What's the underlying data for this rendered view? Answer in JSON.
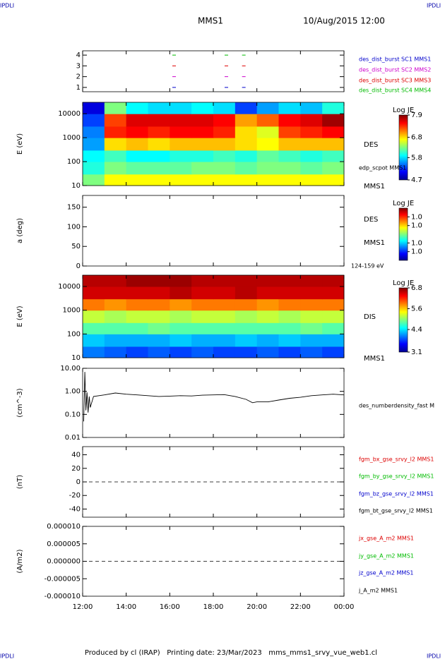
{
  "header": {
    "left": "MMS1",
    "right": "10/Aug/2015 12:00"
  },
  "corner": "IPDLI",
  "footer": "Produced by cl (IRAP)   Printing date: 23/Mar/2023   mms_mms1_srvy_vue_web1.cl",
  "time_axis": {
    "xlim": [
      12,
      24
    ],
    "xticks": [
      {
        "value": 12,
        "label": "12:00"
      },
      {
        "value": 14,
        "label": "14:00"
      },
      {
        "value": 16,
        "label": "16:00"
      },
      {
        "value": 18,
        "label": "18:00"
      },
      {
        "value": 20,
        "label": "20:00"
      },
      {
        "value": 22,
        "label": "22:00"
      },
      {
        "value": 24,
        "label": "00:00"
      }
    ]
  },
  "chart_data": [
    {
      "type": "event",
      "ylim": [
        0.6,
        4.4
      ],
      "yticks": [
        1,
        2,
        3,
        4
      ],
      "series": [
        {
          "name": "des_dist_burst SC1 MMS1",
          "color": "#0000cc",
          "x": [
            16.2,
            18.6,
            19.4
          ],
          "values": [
            1,
            1,
            1
          ]
        },
        {
          "name": "des_dist_burst SC2 MMS2",
          "color": "#cc00cc",
          "x": [
            16.2,
            18.6,
            19.4
          ],
          "values": [
            2,
            2,
            2
          ]
        },
        {
          "name": "des_dist_burst SC3 MMS3",
          "color": "#dd0000",
          "x": [
            16.2,
            18.6,
            19.4
          ],
          "values": [
            3,
            3,
            3
          ]
        },
        {
          "name": "des_dist_burst SC4 MMS4",
          "color": "#00bb00",
          "x": [
            16.2,
            18.6,
            19.4
          ],
          "values": [
            4,
            4,
            4
          ]
        }
      ]
    },
    {
      "type": "heatmap",
      "ylabel": "E (eV)",
      "log_y": true,
      "ylim": [
        10,
        30000
      ],
      "yticks": [
        10,
        100,
        1000,
        10000
      ],
      "xbins": [
        12,
        13,
        14,
        15,
        16,
        17,
        18,
        19,
        20,
        21,
        22,
        23,
        24
      ],
      "ybins": [
        10,
        30,
        100,
        300,
        1000,
        3000,
        10000,
        30000
      ],
      "z": [
        [
          6.3,
          6.7,
          6.7,
          6.7,
          6.7,
          6.7,
          6.7,
          6.7,
          6.7,
          6.7,
          6.7,
          6.7
        ],
        [
          6.0,
          6.3,
          6.2,
          6.2,
          6.2,
          6.3,
          6.3,
          6.2,
          6.3,
          6.3,
          6.2,
          6.3
        ],
        [
          5.9,
          6.1,
          5.9,
          5.9,
          6.0,
          6.0,
          6.1,
          6.0,
          6.2,
          6.1,
          6.0,
          6.1
        ],
        [
          5.6,
          6.8,
          6.9,
          6.8,
          6.9,
          6.9,
          6.9,
          6.8,
          6.7,
          6.9,
          6.9,
          6.9
        ],
        [
          5.5,
          7.4,
          7.5,
          7.4,
          7.5,
          7.5,
          7.4,
          6.8,
          6.6,
          7.3,
          7.4,
          7.5
        ],
        [
          5.3,
          7.3,
          7.6,
          7.6,
          7.6,
          7.6,
          7.5,
          7.0,
          7.2,
          7.5,
          7.6,
          7.8
        ],
        [
          5.0,
          6.3,
          5.9,
          5.8,
          5.8,
          5.9,
          5.8,
          5.3,
          5.6,
          5.8,
          5.7,
          6.0
        ]
      ],
      "colorbar": {
        "label": "Log JE",
        "clim": [
          4.7,
          7.9
        ],
        "ticks": [
          4.7,
          5.8,
          6.8,
          7.9
        ]
      },
      "labels": [
        "DES",
        "edp_scpot MMS1",
        "MMS1"
      ]
    },
    {
      "type": "heatmap",
      "ylabel": "a (deg)",
      "ylim": [
        0,
        180
      ],
      "yticks": [
        0,
        50,
        100,
        150
      ],
      "xbins": [],
      "ybins": [],
      "z": [],
      "colorbar": {
        "label": "Log JE",
        "clim": [
          0.97,
          1.03
        ],
        "ticks": [
          {
            "value": 0.98,
            "label": "1.0"
          },
          {
            "value": 0.99,
            "label": "1.0"
          },
          {
            "value": 1.01,
            "label": "1.0"
          },
          {
            "value": 1.02,
            "label": "1.0"
          }
        ]
      },
      "labels": [
        "DES",
        "MMS1",
        "124-159 eV"
      ]
    },
    {
      "type": "heatmap",
      "ylabel": "E (eV)",
      "log_y": true,
      "ylim": [
        10,
        30000
      ],
      "yticks": [
        10,
        100,
        1000,
        10000
      ],
      "xbins": [
        12,
        13,
        14,
        15,
        16,
        17,
        18,
        19,
        20,
        21,
        22,
        23,
        24
      ],
      "ybins": [
        10,
        30,
        100,
        300,
        1000,
        3000,
        10000,
        30000
      ],
      "z": [
        [
          4.0,
          3.9,
          3.8,
          3.9,
          3.8,
          3.9,
          3.8,
          3.8,
          3.9,
          3.8,
          3.9,
          3.8
        ],
        [
          4.3,
          4.2,
          4.2,
          4.2,
          4.3,
          4.2,
          4.2,
          4.3,
          4.2,
          4.3,
          4.2,
          4.2
        ],
        [
          4.8,
          4.8,
          4.8,
          4.9,
          4.8,
          4.8,
          4.8,
          4.8,
          4.8,
          4.8,
          4.9,
          4.8
        ],
        [
          5.2,
          5.1,
          5.2,
          5.2,
          5.1,
          5.2,
          5.2,
          5.1,
          5.2,
          5.1,
          5.2,
          5.2
        ],
        [
          5.9,
          5.8,
          5.9,
          5.9,
          5.8,
          5.9,
          5.9,
          5.9,
          5.8,
          5.9,
          5.9,
          5.9
        ],
        [
          6.5,
          6.5,
          6.5,
          6.5,
          6.6,
          6.5,
          6.5,
          6.6,
          6.5,
          6.5,
          6.5,
          6.5
        ],
        [
          6.6,
          6.6,
          6.7,
          6.7,
          6.7,
          6.6,
          6.6,
          6.6,
          6.6,
          6.6,
          6.6,
          6.6
        ]
      ],
      "colorbar": {
        "label": "Log JE",
        "clim": [
          3.1,
          6.8
        ],
        "ticks": [
          3.1,
          4.4,
          5.6,
          6.8
        ]
      },
      "labels": [
        "DIS",
        "MMS1"
      ]
    },
    {
      "type": "line",
      "ylabel": "(cm^-3)",
      "log_y": true,
      "ylim": [
        0.01,
        10
      ],
      "yticks": [
        0.01,
        {
          "value": 0.1,
          "label": "0.10"
        },
        {
          "value": 1,
          "label": "1.00"
        },
        {
          "value": 10,
          "label": "10.00"
        }
      ],
      "series": [
        {
          "name": "des_numberdensity_fast M",
          "color": "#000000",
          "x": [
            12.05,
            12.1,
            12.15,
            12.2,
            12.25,
            12.3,
            12.35,
            12.5,
            13,
            13.5,
            14,
            14.5,
            15,
            15.5,
            16,
            16.5,
            17,
            17.5,
            18,
            18.5,
            19,
            19.5,
            19.8,
            20,
            20.5,
            21,
            21.5,
            22,
            22.5,
            23,
            23.5,
            24
          ],
          "values": [
            0.05,
            7,
            0.15,
            0.9,
            0.12,
            0.6,
            0.2,
            0.6,
            0.7,
            0.85,
            0.75,
            0.7,
            0.65,
            0.6,
            0.62,
            0.65,
            0.63,
            0.68,
            0.7,
            0.72,
            0.6,
            0.45,
            0.32,
            0.35,
            0.35,
            0.42,
            0.5,
            0.55,
            0.65,
            0.7,
            0.75,
            0.7
          ]
        }
      ]
    },
    {
      "type": "line",
      "ylabel": "(nT)",
      "ylim": [
        -52,
        52
      ],
      "yticks": [
        40,
        20,
        0,
        -20,
        -40
      ],
      "zero_line": true,
      "series": [
        {
          "name": "fgm_bx_gse_srvy_l2 MMS1",
          "color": "#dd0000"
        },
        {
          "name": "fgm_by_gse_srvy_l2 MMS1",
          "color": "#00bb00"
        },
        {
          "name": "fgm_bz_gse_srvy_l2 MMS1",
          "color": "#0000cc"
        },
        {
          "name": "fgm_bt_gse_srvy_l2 MMS1",
          "color": "#000000"
        }
      ]
    },
    {
      "type": "line",
      "ylabel": "(A/m2)",
      "ylim": [
        -1e-05,
        1e-05
      ],
      "zero_line": true,
      "yticks": [
        {
          "value": 1e-05,
          "label": "0.000010"
        },
        {
          "value": 5e-06,
          "label": "0.000005"
        },
        {
          "value": 0,
          "label": "0.000000"
        },
        {
          "value": -5e-06,
          "label": "-0.000005"
        },
        {
          "value": -1e-05,
          "label": "-0.000010"
        }
      ],
      "series": [
        {
          "name": "jx_gse_A_m2 MMS1",
          "color": "#dd0000"
        },
        {
          "name": "jy_gse_A_m2 MMS1",
          "color": "#00bb00"
        },
        {
          "name": "jz_gse_A_m2 MMS1",
          "color": "#0000cc"
        },
        {
          "name": "j_A_m2 MMS1",
          "color": "#000000"
        }
      ]
    }
  ]
}
